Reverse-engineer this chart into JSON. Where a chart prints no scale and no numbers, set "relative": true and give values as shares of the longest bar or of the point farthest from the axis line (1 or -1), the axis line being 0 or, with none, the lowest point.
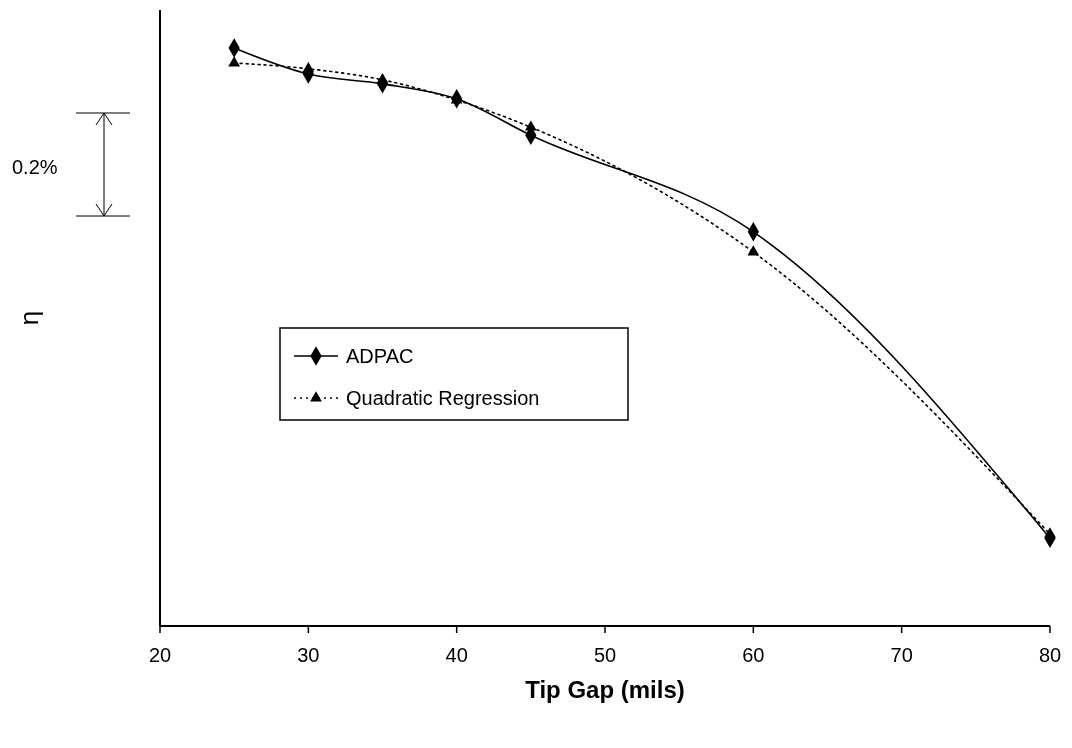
{
  "chart_data": {
    "type": "line",
    "relative": true,
    "xlabel": "Tip Gap (mils)",
    "ylabel": "η",
    "xlim": [
      20,
      80
    ],
    "xticks": [
      20,
      30,
      40,
      50,
      60,
      70,
      80
    ],
    "legend": "left",
    "annotations": [
      "0.2%"
    ],
    "x": [
      25,
      30,
      35,
      40,
      45,
      60,
      80
    ],
    "series": [
      {
        "name": "ADPAC",
        "color": "#000000",
        "marker": "diamond",
        "line_style": "solid",
        "values": [
          1,
          0.955,
          0.938,
          0.912,
          0.849,
          0.682,
          0.152
        ]
      },
      {
        "name": "Quadratic Regression",
        "color": "#000000",
        "marker": "triangle",
        "line_style": "dotted",
        "values": [
          0.974,
          0.964,
          0.945,
          0.91,
          0.863,
          0.647,
          0.159
        ]
      }
    ]
  }
}
